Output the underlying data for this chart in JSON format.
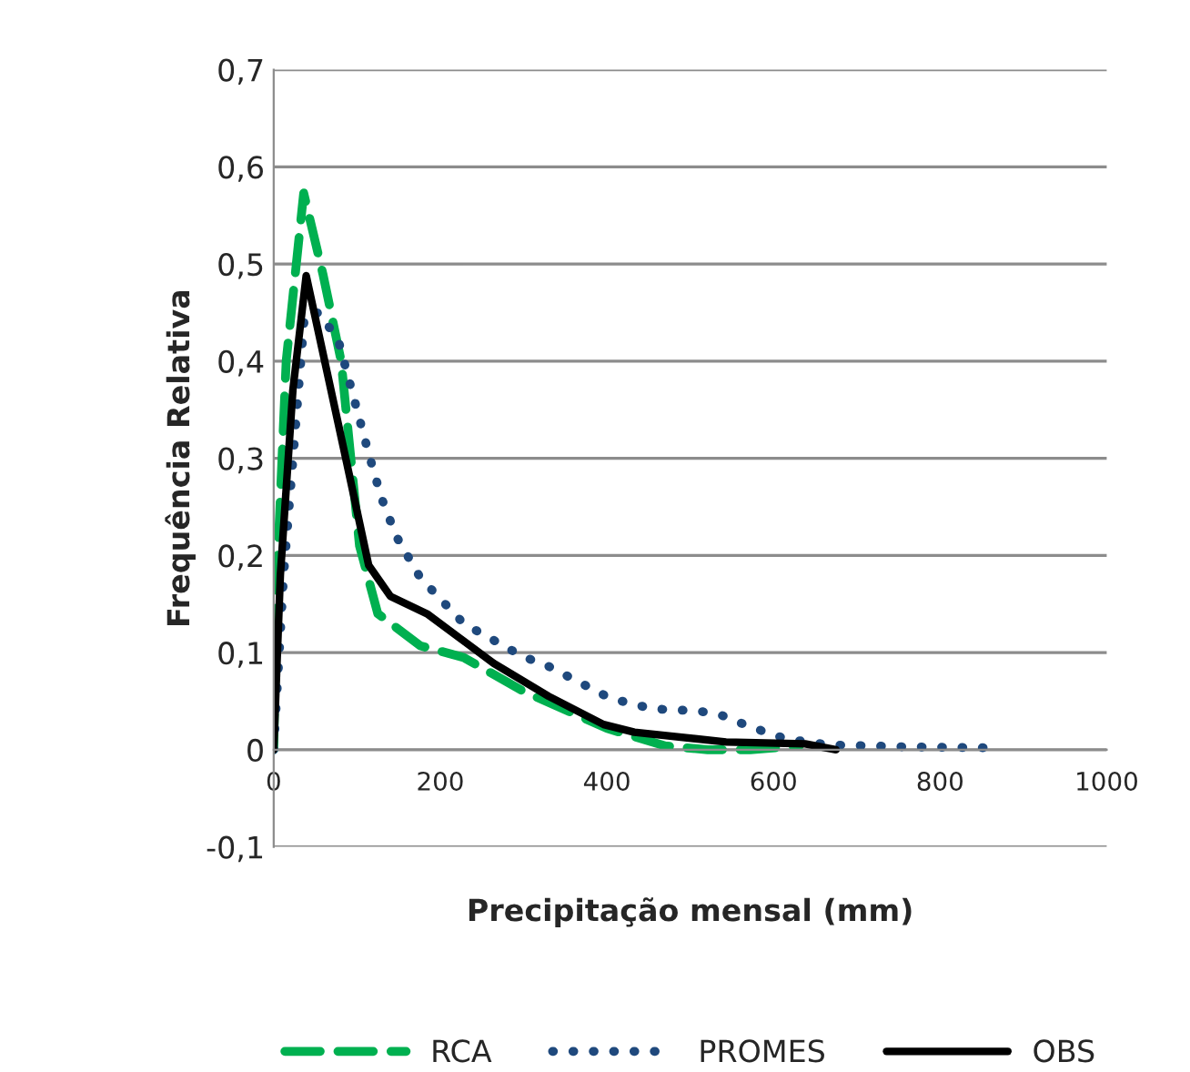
{
  "chart_data": {
    "type": "line",
    "xlabel": "Precipitação mensal (mm)",
    "ylabel": "Frequência Relativa",
    "xlim": [
      0,
      1000
    ],
    "xticks": [
      0,
      200,
      400,
      600,
      800,
      1000
    ],
    "ylim": [
      -0.1,
      0.7
    ],
    "yticks": [
      {
        "value": -0.1,
        "label": "-0,1"
      },
      {
        "value": 0,
        "label": "0"
      },
      {
        "value": 0.1,
        "label": "0,1"
      },
      {
        "value": 0.2,
        "label": "0,2"
      },
      {
        "value": 0.3,
        "label": "0,3"
      },
      {
        "value": 0.4,
        "label": "0,4"
      },
      {
        "value": 0.5,
        "label": "0,5"
      },
      {
        "value": 0.6,
        "label": "0,6"
      },
      {
        "value": 0.7,
        "label": "0,7"
      }
    ],
    "grid": "y",
    "legend": "bottom",
    "marker": "none",
    "series": [
      {
        "name": "RCA",
        "color": "#00b050",
        "line_style": "dashed",
        "x": [
          0,
          4,
          15,
          36,
          59,
          81,
          103,
          125,
          176,
          228,
          300,
          400,
          470,
          521,
          572,
          631
        ],
        "values": [
          0,
          0.18,
          0.4,
          0.573,
          0.49,
          0.4,
          0.21,
          0.14,
          0.107,
          0.095,
          0.06,
          0.022,
          0.004,
          0,
          0,
          0.004
        ]
      },
      {
        "name": "PROMES",
        "color": "#1f497d",
        "line_style": "dotted",
        "x": [
          0,
          12,
          37,
          55,
          78,
          100,
          114,
          129,
          147,
          176,
          228,
          301,
          323,
          404,
          455,
          510,
          539,
          565,
          591,
          616,
          667,
          760,
          860
        ],
        "values": [
          0,
          0.18,
          0.447,
          0.45,
          0.42,
          0.35,
          0.305,
          0.26,
          0.22,
          0.177,
          0.13,
          0.095,
          0.089,
          0.053,
          0.042,
          0.04,
          0.035,
          0.026,
          0.018,
          0.011,
          0.005,
          0.003,
          0.002
        ]
      },
      {
        "name": "OBS",
        "color": "#000000",
        "line_style": "solid",
        "x": [
          0,
          8,
          23,
          39,
          89,
          114,
          140,
          184,
          264,
          330,
          396,
          433,
          543,
          638,
          675
        ],
        "values": [
          0,
          0.18,
          0.37,
          0.488,
          0.29,
          0.19,
          0.158,
          0.14,
          0.089,
          0.055,
          0.026,
          0.018,
          0.008,
          0.006,
          0
        ]
      }
    ]
  }
}
